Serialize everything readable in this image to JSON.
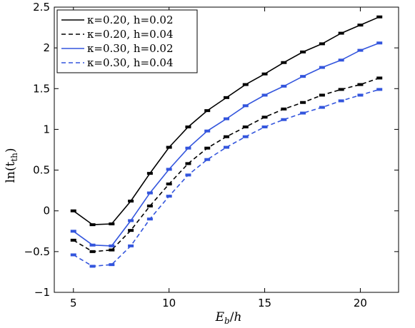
{
  "chart_data": {
    "type": "line",
    "xlabel": "E_b/h",
    "ylabel": "ln(t_th)",
    "xlim": [
      4,
      22
    ],
    "ylim": [
      -1,
      2.5
    ],
    "xticks": [
      5,
      10,
      15,
      20
    ],
    "yticks": [
      -1,
      -0.5,
      0,
      0.5,
      1,
      1.5,
      2,
      2.5
    ],
    "xtick_labels": [
      "5",
      "10",
      "15",
      "20"
    ],
    "ytick_labels": [
      "−1",
      "−0.5",
      "0",
      "0.5",
      "1",
      "1.5",
      "2",
      "2.5"
    ],
    "grid": false,
    "legend_position": "top-left",
    "x": [
      5,
      6,
      7,
      8,
      9,
      10,
      11,
      12,
      13,
      14,
      15,
      16,
      17,
      18,
      19,
      20,
      21
    ],
    "series": [
      {
        "name": "κ=0.20, h=0.02",
        "color": "#000000",
        "dash": "solid",
        "values": [
          0.0,
          -0.17,
          -0.16,
          0.12,
          0.46,
          0.78,
          1.03,
          1.23,
          1.39,
          1.55,
          1.68,
          1.82,
          1.95,
          2.05,
          2.18,
          2.28,
          2.38
        ]
      },
      {
        "name": "κ=0.20, h=0.04",
        "color": "#000000",
        "dash": "dashed",
        "values": [
          -0.36,
          -0.5,
          -0.48,
          -0.24,
          0.06,
          0.33,
          0.58,
          0.77,
          0.91,
          1.03,
          1.15,
          1.25,
          1.33,
          1.42,
          1.49,
          1.55,
          1.63
        ]
      },
      {
        "name": "κ=0.30, h=0.02",
        "color": "#3355dd",
        "dash": "solid",
        "values": [
          -0.25,
          -0.42,
          -0.43,
          -0.12,
          0.22,
          0.51,
          0.77,
          0.98,
          1.13,
          1.29,
          1.42,
          1.53,
          1.65,
          1.76,
          1.85,
          1.97,
          2.06
        ]
      },
      {
        "name": "κ=0.30, h=0.04",
        "color": "#3355dd",
        "dash": "dashed",
        "values": [
          -0.54,
          -0.68,
          -0.66,
          -0.43,
          -0.1,
          0.18,
          0.44,
          0.63,
          0.78,
          0.91,
          1.03,
          1.12,
          1.2,
          1.27,
          1.35,
          1.42,
          1.49
        ]
      }
    ]
  }
}
